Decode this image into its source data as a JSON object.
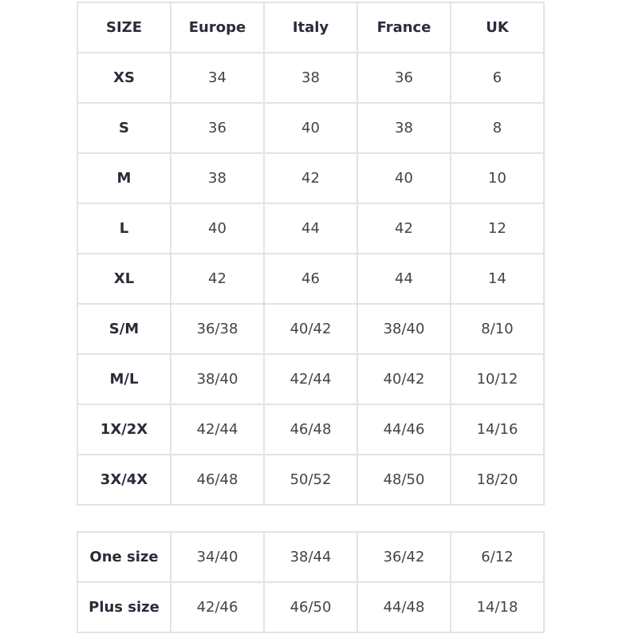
{
  "main_table": {
    "headers": [
      "SIZE",
      "Europe",
      "Italy",
      "France",
      "UK"
    ],
    "rows": [
      [
        "XS",
        "34",
        "38",
        "36",
        "6"
      ],
      [
        "S",
        "36",
        "40",
        "38",
        "8"
      ],
      [
        "M",
        "38",
        "42",
        "40",
        "10"
      ],
      [
        "L",
        "40",
        "44",
        "42",
        "12"
      ],
      [
        "XL",
        "42",
        "46",
        "44",
        "14"
      ],
      [
        "S/M",
        "36/38",
        "40/42",
        "38/40",
        "8/10"
      ],
      [
        "M/L",
        "38/40",
        "42/44",
        "40/42",
        "10/12"
      ],
      [
        "1X/2X",
        "42/44",
        "46/48",
        "44/46",
        "14/16"
      ],
      [
        "3X/4X",
        "46/48",
        "50/52",
        "48/50",
        "18/20"
      ]
    ]
  },
  "extra_table": {
    "rows": [
      [
        "One size",
        "34/40",
        "38/44",
        "36/42",
        "6/12"
      ],
      [
        "Plus size",
        "42/46",
        "46/50",
        "44/48",
        "14/18"
      ]
    ]
  }
}
